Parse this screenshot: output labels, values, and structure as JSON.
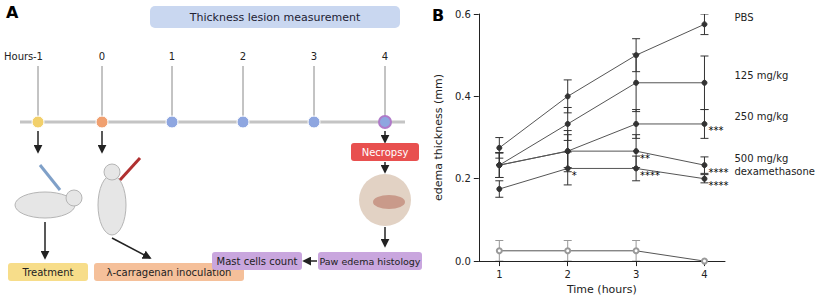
{
  "diagram": {
    "label": "A",
    "header": "Thickness lesion measurement",
    "axis_label": "Hours",
    "timepoints": [
      -1,
      0,
      1,
      2,
      3,
      4
    ],
    "steps": {
      "treatment": "Treatment",
      "inoculation": "λ-carragenan inoculation",
      "necropsy": "Necropsy",
      "histology": "Paw edema histology",
      "count": "Mast cells count"
    }
  },
  "chart_data": {
    "type": "line",
    "title": "B",
    "xlabel": "Time (hours)",
    "ylabel": "edema thickness (mm)",
    "x": [
      1,
      2,
      3,
      4
    ],
    "xlim": [
      0.7,
      4.3
    ],
    "xticks": [
      1,
      2,
      3,
      4
    ],
    "ylim": [
      0,
      0.6
    ],
    "yticks": [
      {
        "value": 0,
        "label": "0.0"
      },
      {
        "value": 0.2,
        "label": "0.2"
      },
      {
        "value": 0.4,
        "label": "0.4"
      },
      {
        "value": 0.6,
        "label": "0.6"
      }
    ],
    "grid": false,
    "series": [
      {
        "name": "PBS",
        "color": "#333333",
        "marker": "circle",
        "values": [
          0.275,
          0.4,
          0.5,
          0.575
        ],
        "errors": [
          0.025,
          0.04,
          0.04,
          0.025
        ],
        "annotations": []
      },
      {
        "name": "125 mg/kg",
        "color": "#333333",
        "marker": "circle",
        "values": [
          0.233,
          0.333,
          0.433,
          0.433
        ],
        "errors": [
          0.03,
          0.04,
          0.07,
          0.065
        ],
        "annotations": []
      },
      {
        "name": "250 mg/kg",
        "color": "#333333",
        "marker": "circle",
        "values": [
          0.233,
          0.267,
          0.333,
          0.333
        ],
        "errors": [
          0.03,
          0.04,
          0.035,
          0.035
        ],
        "annotations": [
          {
            "x": 4,
            "text": "***"
          }
        ]
      },
      {
        "name": "500 mg/kg",
        "color": "#333333",
        "marker": "circle",
        "values": [
          0.233,
          0.267,
          0.267,
          0.233
        ],
        "errors": [
          0.03,
          0.05,
          0.04,
          0.02
        ],
        "annotations": [
          {
            "x": 3,
            "text": "**"
          },
          {
            "x": 4,
            "text": "****"
          }
        ]
      },
      {
        "name": "dexamethasone",
        "color": "#333333",
        "marker": "circle",
        "values": [
          0.175,
          0.225,
          0.225,
          0.2
        ],
        "errors": [
          0.02,
          0.04,
          0.03,
          0.01
        ],
        "annotations": [
          {
            "x": 2,
            "text": "*"
          },
          {
            "x": 3,
            "text": "****"
          },
          {
            "x": 4,
            "text": "****"
          }
        ]
      },
      {
        "color": "#999999",
        "marker": "open_circle",
        "values": [
          0.025,
          0.025,
          0.025,
          0
        ],
        "errors": [
          0.025,
          0.025,
          0.025,
          0
        ],
        "annotations": []
      }
    ]
  }
}
